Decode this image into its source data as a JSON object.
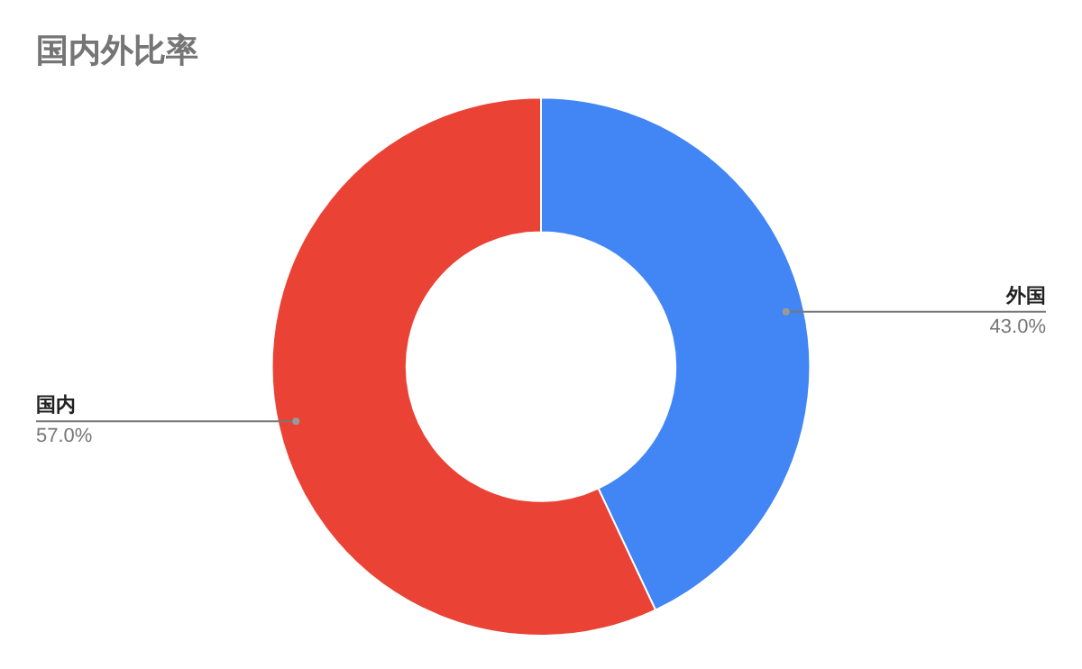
{
  "chart_data": {
    "type": "donut",
    "title": "国内外比率",
    "categories": [
      "外国",
      "国内"
    ],
    "values": [
      43.0,
      57.0
    ],
    "colors": [
      "#4285f4",
      "#ea4335"
    ],
    "value_labels": [
      "43.0%",
      "57.0%"
    ],
    "legend": false
  }
}
